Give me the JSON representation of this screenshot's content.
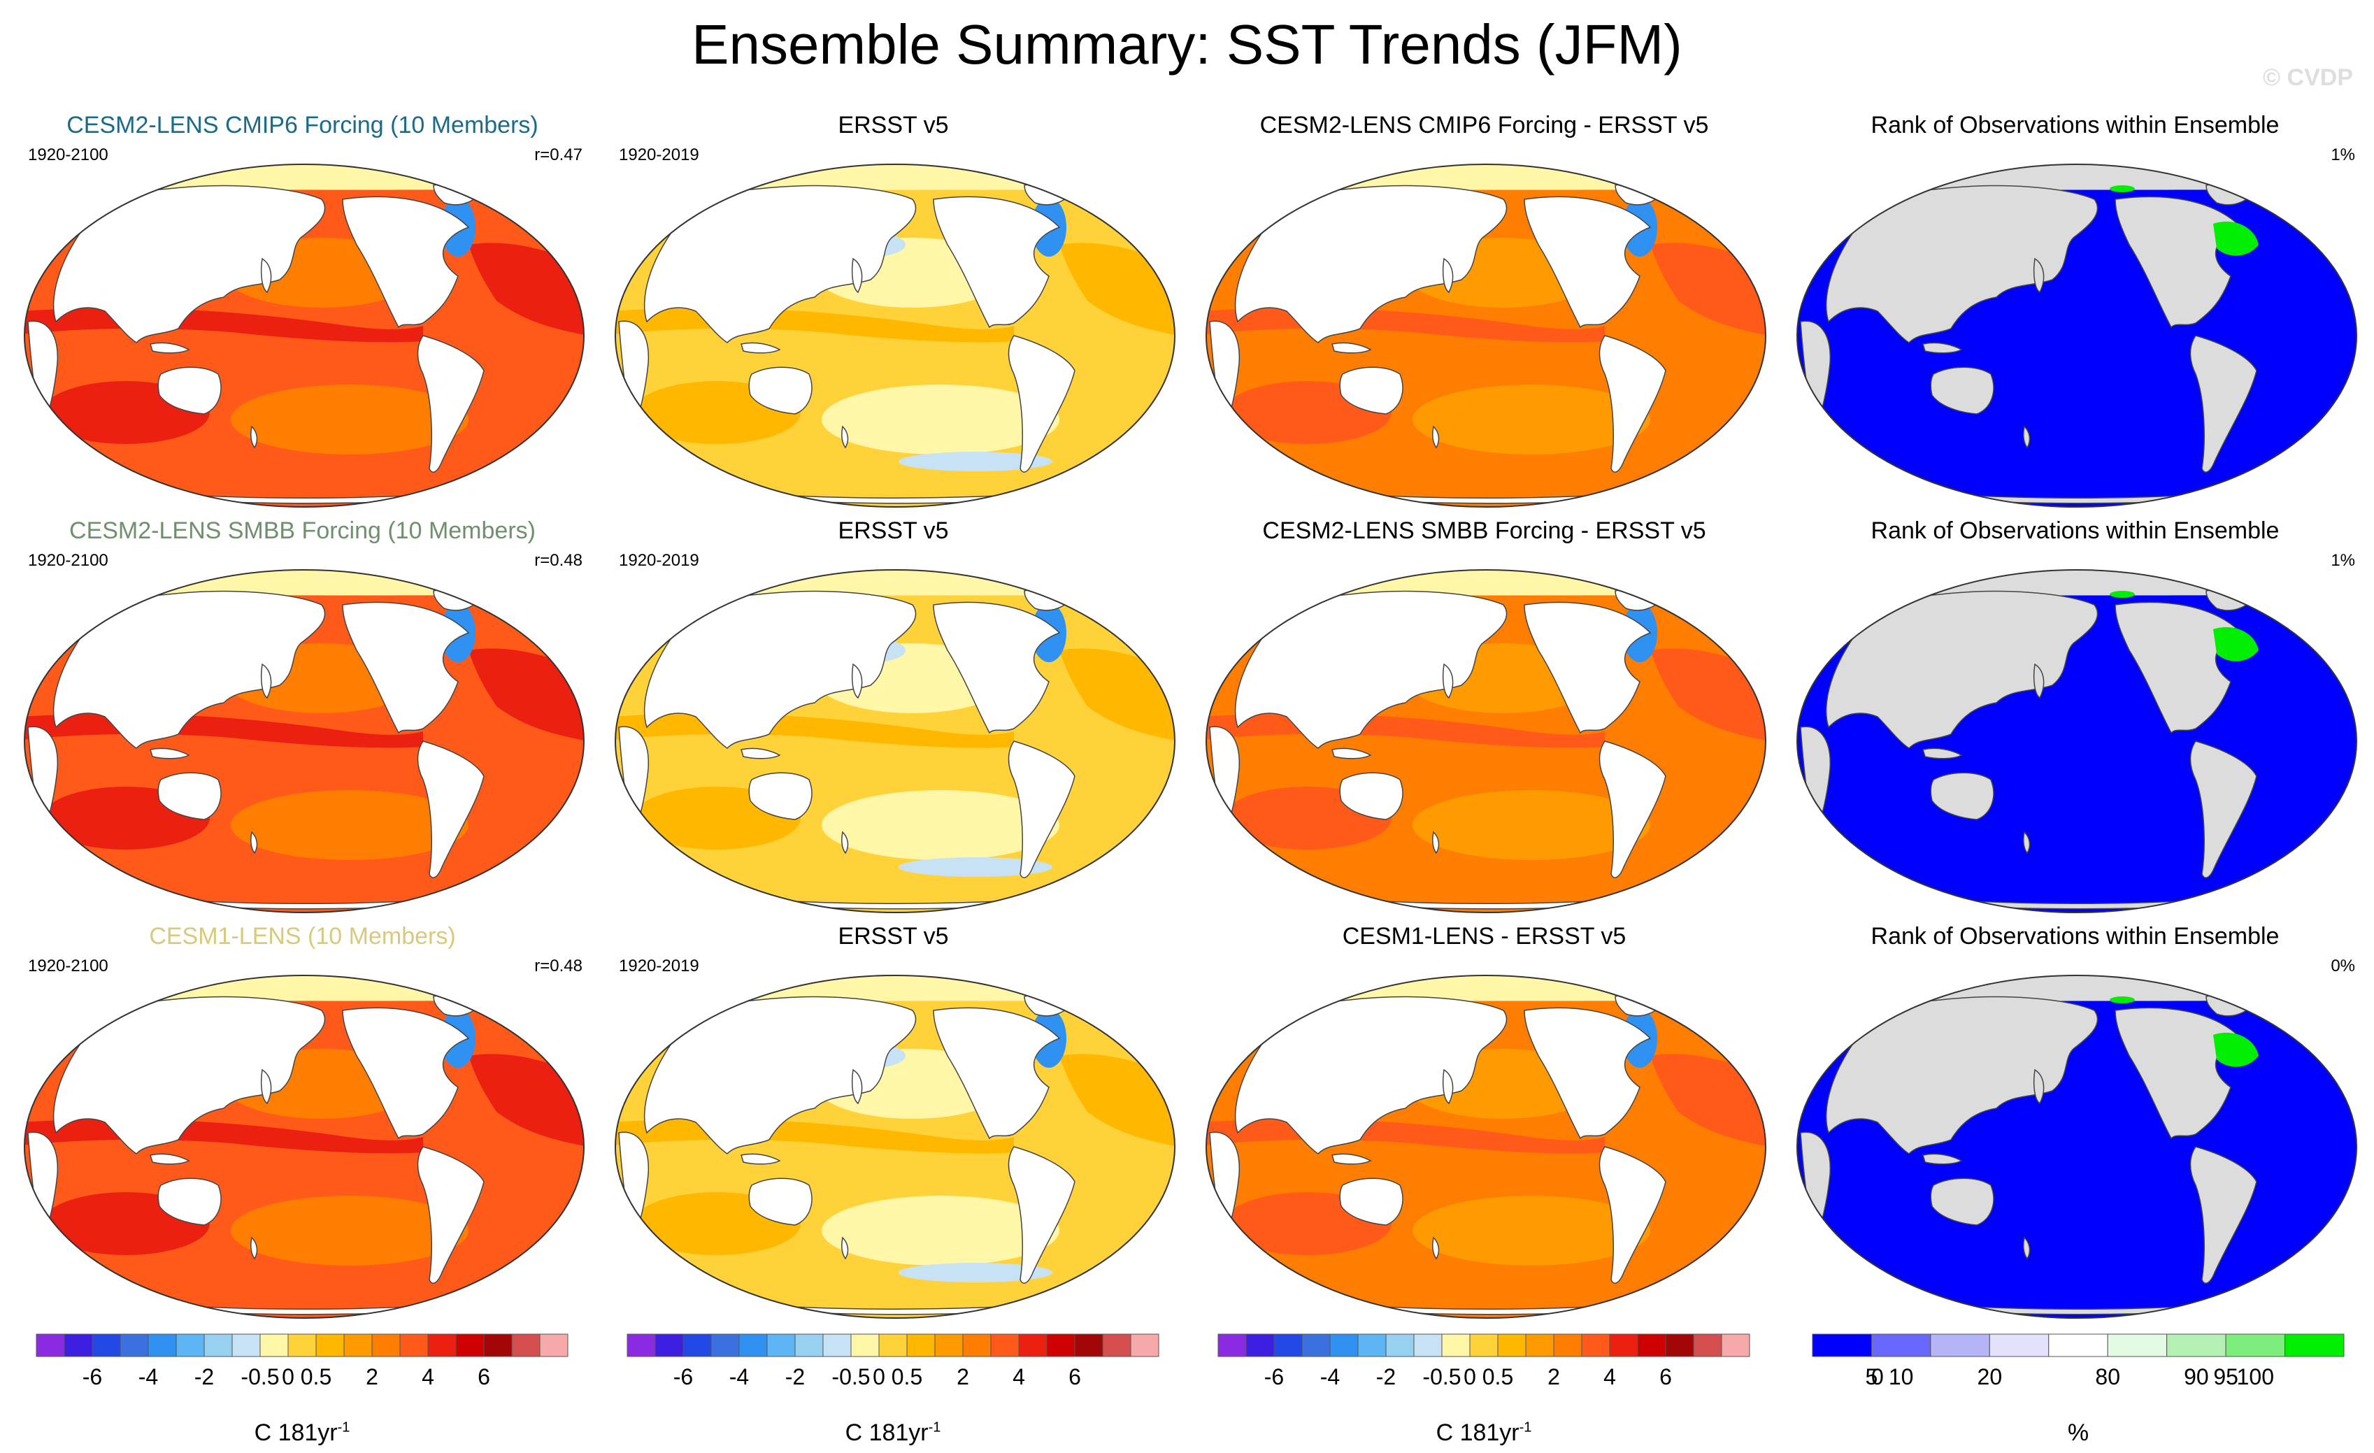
{
  "title": "Ensemble Summary: SST Trends (JFM)",
  "watermark": "© CVDP",
  "rows": [
    {
      "model": {
        "title": "CESM2-LENS CMIP6 Forcing (10 Members)",
        "title_color": "#1a6a8a",
        "period": "1920-2100",
        "r": "r=0.47"
      },
      "obs": {
        "title": "ERSST v5",
        "period": "1920-2019"
      },
      "diff": {
        "title": "CESM2-LENS CMIP6 Forcing - ERSST v5"
      },
      "rank": {
        "title": "Rank of Observations within Ensemble",
        "pct": "1%"
      }
    },
    {
      "model": {
        "title": "CESM2-LENS SMBB Forcing (10 Members)",
        "title_color": "#6f8f6f",
        "period": "1920-2100",
        "r": "r=0.48"
      },
      "obs": {
        "title": "ERSST v5",
        "period": "1920-2019"
      },
      "diff": {
        "title": "CESM2-LENS SMBB Forcing - ERSST v5"
      },
      "rank": {
        "title": "Rank of Observations within Ensemble",
        "pct": "1%"
      }
    },
    {
      "model": {
        "title": "CESM1-LENS (10 Members)",
        "title_color": "#d9c97a",
        "period": "1920-2100",
        "r": "r=0.48"
      },
      "obs": {
        "title": "ERSST v5",
        "period": "1920-2019"
      },
      "diff": {
        "title": "CESM1-LENS - ERSST v5"
      },
      "rank": {
        "title": "Rank of Observations within Ensemble",
        "pct": "0%"
      }
    }
  ],
  "chart_data": [
    {
      "type": "heatmap",
      "panel": "row1-model",
      "title": "CESM2-LENS CMIP6 Forcing (10 Members)",
      "period": "1920-2100",
      "r": 0.47,
      "field": "SST trend",
      "dominant_range": [
        2,
        4
      ]
    },
    {
      "type": "heatmap",
      "panel": "row1-obs",
      "title": "ERSST v5",
      "period": "1920-2019",
      "field": "SST trend",
      "dominant_range": [
        0,
        2
      ]
    },
    {
      "type": "heatmap",
      "panel": "row1-diff",
      "title": "CESM2-LENS CMIP6 Forcing - ERSST v5",
      "field": "SST trend difference",
      "dominant_range": [
        1,
        3
      ]
    },
    {
      "type": "heatmap",
      "panel": "row1-rank",
      "title": "Rank of Observations within Ensemble",
      "percent": 1
    },
    {
      "type": "heatmap",
      "panel": "row2-model",
      "title": "CESM2-LENS SMBB Forcing (10 Members)",
      "period": "1920-2100",
      "r": 0.48,
      "field": "SST trend",
      "dominant_range": [
        2,
        4
      ]
    },
    {
      "type": "heatmap",
      "panel": "row2-obs",
      "title": "ERSST v5",
      "period": "1920-2019",
      "field": "SST trend",
      "dominant_range": [
        0,
        2
      ]
    },
    {
      "type": "heatmap",
      "panel": "row2-diff",
      "title": "CESM2-LENS SMBB Forcing - ERSST v5",
      "field": "SST trend difference",
      "dominant_range": [
        1,
        3
      ]
    },
    {
      "type": "heatmap",
      "panel": "row2-rank",
      "title": "Rank of Observations within Ensemble",
      "percent": 1
    },
    {
      "type": "heatmap",
      "panel": "row3-model",
      "title": "CESM1-LENS (10 Members)",
      "period": "1920-2100",
      "r": 0.48,
      "field": "SST trend",
      "dominant_range": [
        2,
        4
      ]
    },
    {
      "type": "heatmap",
      "panel": "row3-obs",
      "title": "ERSST v5",
      "period": "1920-2019",
      "field": "SST trend",
      "dominant_range": [
        0,
        2
      ]
    },
    {
      "type": "heatmap",
      "panel": "row3-diff",
      "title": "CESM1-LENS - ERSST v5",
      "field": "SST trend difference",
      "dominant_range": [
        1,
        3
      ]
    },
    {
      "type": "heatmap",
      "panel": "row3-rank",
      "title": "Rank of Observations within Ensemble",
      "percent": 0
    }
  ],
  "trend_colorbar": {
    "colors": [
      "#8a2be2",
      "#3c1fe0",
      "#2248e6",
      "#3a70e0",
      "#2f91f2",
      "#5cb6f5",
      "#98d0f0",
      "#c6e2f4",
      "#fff6a8",
      "#ffd23a",
      "#ffb700",
      "#ff9a00",
      "#ff7d00",
      "#ff5a1a",
      "#ec2010",
      "#cf0000",
      "#a30606",
      "#d64f4f",
      "#f6a9a9"
    ],
    "tick_labels": [
      "-6",
      "-4",
      "-2",
      "-0.5",
      "0",
      "0.5",
      "2",
      "4",
      "6"
    ],
    "tick_after_segment": [
      1,
      3,
      5,
      7,
      8,
      9,
      11,
      13,
      15
    ],
    "units": "C 181yr",
    "units_exponent": "-1"
  },
  "rank_colorbar": {
    "colors": [
      "#0000ff",
      "#6868ff",
      "#b4b4f6",
      "#e2e2fc",
      "#ffffff",
      "#e2fae2",
      "#b4f0b4",
      "#7cec7c",
      "#00ee00"
    ],
    "tick_labels": [
      "0",
      "5",
      "10",
      "20",
      "80",
      "90",
      "95",
      "100"
    ],
    "tick_label_slots": [
      0.5,
      1.0,
      1.5,
      3.0,
      5.0,
      6.5,
      7.0,
      7.5
    ],
    "units": "%"
  },
  "map_colors": {
    "land": "#ffffff",
    "land_rank": "#dcdcdc",
    "arctic": "#fff6a8",
    "model_base": "#ff5a1a",
    "model_high": "#ec2010",
    "model_low": "#ff7d00",
    "obs_base": "#ffd23a",
    "obs_high": "#ffb700",
    "obs_low": "#fff6a8",
    "diff_base": "#ff7d00",
    "diff_high": "#ff5a1a",
    "diff_low": "#ff9a00",
    "cold": "#2f91f2",
    "cold_light": "#c6e2f4",
    "rank_ocean": "#0000ff",
    "rank_green": "#00ee00"
  }
}
